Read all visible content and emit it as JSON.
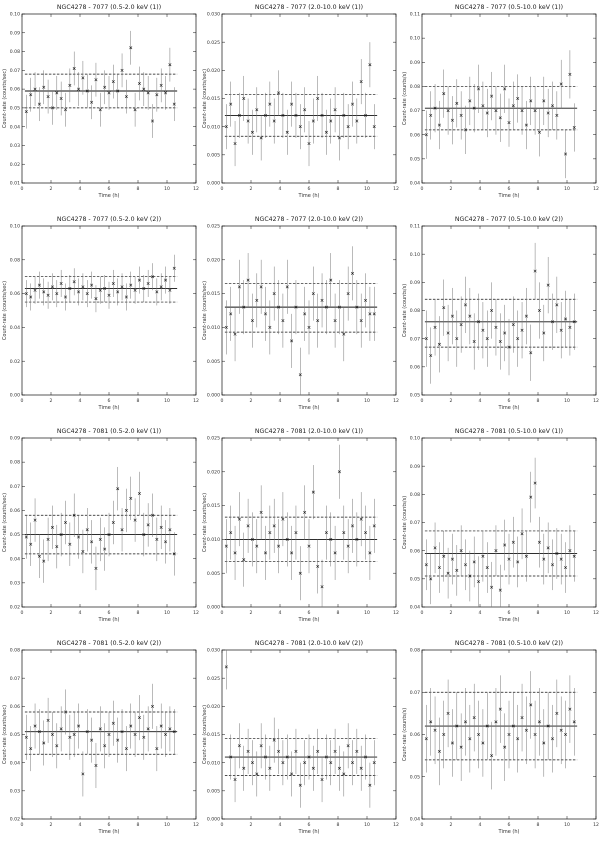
{
  "chart_data": [
    {
      "type": "scatter",
      "title": "NGC4278 - 7077 (0.5-2.0 keV (1))",
      "xlabel": "Time (h)",
      "ylabel": "Count-rate (counts/sec)",
      "xlim": [
        0,
        12
      ],
      "ylim": [
        0.01,
        0.1
      ],
      "xticks": [
        "0",
        "2",
        "4",
        "6",
        "8",
        "10",
        "12"
      ],
      "yticks": [
        "0.01",
        "0.02",
        "0.03",
        "0.04",
        "0.05",
        "0.06",
        "0.07",
        "0.08",
        "0.09",
        "0.10"
      ],
      "mean": 0.059,
      "band": [
        0.05,
        0.068
      ],
      "x": [
        0.3,
        0.6,
        0.9,
        1.2,
        1.5,
        1.8,
        2.1,
        2.4,
        2.7,
        3.0,
        3.3,
        3.6,
        3.9,
        4.2,
        4.5,
        4.8,
        5.1,
        5.4,
        5.7,
        6.0,
        6.3,
        6.6,
        6.9,
        7.2,
        7.5,
        7.8,
        8.1,
        8.4,
        8.7,
        9.0,
        9.3,
        9.6,
        9.9,
        10.2,
        10.5
      ],
      "y": [
        0.048,
        0.057,
        0.06,
        0.052,
        0.061,
        0.056,
        0.05,
        0.058,
        0.055,
        0.049,
        0.062,
        0.071,
        0.06,
        0.066,
        0.059,
        0.053,
        0.065,
        0.049,
        0.061,
        0.058,
        0.064,
        0.059,
        0.07,
        0.056,
        0.082,
        0.049,
        0.063,
        0.06,
        0.058,
        0.043,
        0.057,
        0.062,
        0.058,
        0.073,
        0.052
      ],
      "err": 0.009
    },
    {
      "type": "scatter",
      "title": "NGC4278 - 7077 (2.0-10.0 keV (1))",
      "xlabel": "Time (h)",
      "ylabel": "Count-rate (counts/sec)",
      "xlim": [
        0,
        12
      ],
      "ylim": [
        0,
        0.03
      ],
      "xticks": [
        "0",
        "2",
        "4",
        "6",
        "8",
        "10",
        "12"
      ],
      "yticks": [
        "0.000",
        "0.005",
        "0.010",
        "0.015",
        "0.020",
        "0.025",
        "0.030"
      ],
      "mean": 0.012,
      "band": [
        0.0083,
        0.0157
      ],
      "x": [
        0.3,
        0.6,
        0.9,
        1.2,
        1.5,
        1.8,
        2.1,
        2.4,
        2.7,
        3.0,
        3.3,
        3.6,
        3.9,
        4.2,
        4.5,
        4.8,
        5.1,
        5.4,
        5.7,
        6.0,
        6.3,
        6.6,
        6.9,
        7.2,
        7.5,
        7.8,
        8.1,
        8.4,
        8.7,
        9.0,
        9.3,
        9.6,
        9.9,
        10.2,
        10.5
      ],
      "y": [
        0.01,
        0.014,
        0.007,
        0.012,
        0.015,
        0.011,
        0.009,
        0.013,
        0.008,
        0.012,
        0.014,
        0.011,
        0.016,
        0.012,
        0.009,
        0.014,
        0.012,
        0.01,
        0.013,
        0.007,
        0.011,
        0.015,
        0.012,
        0.009,
        0.011,
        0.013,
        0.008,
        0.012,
        0.01,
        0.014,
        0.011,
        0.018,
        0.012,
        0.021,
        0.01
      ],
      "err": 0.004
    },
    {
      "type": "scatter",
      "title": "NGC4278 - 7077 (0.5-10.0 keV (1))",
      "xlabel": "Time (h)",
      "ylabel": "Count-rate (counts/s)",
      "xlim": [
        0,
        12
      ],
      "ylim": [
        0.04,
        0.11
      ],
      "xticks": [
        "0",
        "2",
        "4",
        "6",
        "8",
        "10",
        "12"
      ],
      "yticks": [
        "0.04",
        "0.05",
        "0.06",
        "0.07",
        "0.08",
        "0.09",
        "0.10",
        "0.11"
      ],
      "mean": 0.071,
      "band": [
        0.062,
        0.08
      ],
      "x": [
        0.3,
        0.6,
        0.9,
        1.2,
        1.5,
        1.8,
        2.1,
        2.4,
        2.7,
        3.0,
        3.3,
        3.6,
        3.9,
        4.2,
        4.5,
        4.8,
        5.1,
        5.4,
        5.7,
        6.0,
        6.3,
        6.6,
        6.9,
        7.2,
        7.5,
        7.8,
        8.1,
        8.4,
        8.7,
        9.0,
        9.3,
        9.6,
        9.9,
        10.2,
        10.5
      ],
      "y": [
        0.06,
        0.068,
        0.071,
        0.064,
        0.077,
        0.07,
        0.066,
        0.073,
        0.068,
        0.062,
        0.074,
        0.071,
        0.079,
        0.072,
        0.069,
        0.076,
        0.07,
        0.067,
        0.079,
        0.065,
        0.072,
        0.075,
        0.07,
        0.064,
        0.074,
        0.07,
        0.061,
        0.074,
        0.069,
        0.072,
        0.068,
        0.081,
        0.052,
        0.085,
        0.063
      ],
      "err": 0.01
    },
    {
      "type": "scatter",
      "title": "NGC4278 - 7077 (0.5-2.0 keV (2))",
      "xlabel": "Time (h)",
      "ylabel": "Count-rate (counts/sec)",
      "xlim": [
        0,
        12
      ],
      "ylim": [
        0,
        0.1
      ],
      "xticks": [
        "0",
        "2",
        "4",
        "6",
        "8",
        "10",
        "12"
      ],
      "yticks": [
        "0.00",
        "0.02",
        "0.04",
        "0.06",
        "0.08",
        "0.10"
      ],
      "mean": 0.063,
      "band": [
        0.055,
        0.07
      ],
      "x": [
        0.3,
        0.6,
        0.9,
        1.2,
        1.5,
        1.8,
        2.1,
        2.4,
        2.7,
        3.0,
        3.3,
        3.6,
        3.9,
        4.2,
        4.5,
        4.8,
        5.1,
        5.4,
        5.7,
        6.0,
        6.3,
        6.6,
        6.9,
        7.2,
        7.5,
        7.8,
        8.1,
        8.4,
        8.7,
        9.0,
        9.3,
        9.6,
        9.9,
        10.2,
        10.5
      ],
      "y": [
        0.06,
        0.058,
        0.062,
        0.065,
        0.061,
        0.059,
        0.064,
        0.06,
        0.066,
        0.058,
        0.063,
        0.067,
        0.061,
        0.064,
        0.06,
        0.065,
        0.057,
        0.062,
        0.063,
        0.059,
        0.066,
        0.061,
        0.064,
        0.058,
        0.065,
        0.062,
        0.068,
        0.063,
        0.066,
        0.07,
        0.061,
        0.064,
        0.068,
        0.062,
        0.075
      ],
      "err": 0.008
    },
    {
      "type": "scatter",
      "title": "NGC4278 - 7077 (2.0-10.0 keV (2))",
      "xlabel": "Time (h)",
      "ylabel": "Count-rate (counts/sec)",
      "xlim": [
        0,
        12
      ],
      "ylim": [
        0,
        0.025
      ],
      "xticks": [
        "0",
        "2",
        "4",
        "6",
        "8",
        "10",
        "12"
      ],
      "yticks": [
        "0.000",
        "0.005",
        "0.010",
        "0.015",
        "0.020",
        "0.025"
      ],
      "mean": 0.013,
      "band": [
        0.0093,
        0.0165
      ],
      "x": [
        0.3,
        0.6,
        0.9,
        1.2,
        1.5,
        1.8,
        2.1,
        2.4,
        2.7,
        3.0,
        3.3,
        3.6,
        3.9,
        4.2,
        4.5,
        4.8,
        5.1,
        5.4,
        5.7,
        6.0,
        6.3,
        6.6,
        6.9,
        7.2,
        7.5,
        7.8,
        8.1,
        8.4,
        8.7,
        9.0,
        9.3,
        9.6,
        9.9,
        10.2,
        10.5
      ],
      "y": [
        0.01,
        0.012,
        0.009,
        0.016,
        0.013,
        0.017,
        0.011,
        0.014,
        0.016,
        0.012,
        0.01,
        0.015,
        0.013,
        0.011,
        0.016,
        0.008,
        0.013,
        0.003,
        0.012,
        0.01,
        0.015,
        0.011,
        0.014,
        0.013,
        0.017,
        0.011,
        0.013,
        0.009,
        0.015,
        0.018,
        0.013,
        0.011,
        0.014,
        0.012,
        0.012
      ],
      "err": 0.004
    },
    {
      "type": "scatter",
      "title": "NGC4278 - 7077 (0.5-10.0 keV (2))",
      "xlabel": "Time (h)",
      "ylabel": "Count-rate (counts/s)",
      "xlim": [
        0,
        12
      ],
      "ylim": [
        0.05,
        0.11
      ],
      "xticks": [
        "0",
        "2",
        "4",
        "6",
        "8",
        "10",
        "12"
      ],
      "yticks": [
        "0.05",
        "0.06",
        "0.07",
        "0.08",
        "0.09",
        "0.10",
        "0.11"
      ],
      "mean": 0.076,
      "band": [
        0.067,
        0.084
      ],
      "x": [
        0.3,
        0.6,
        0.9,
        1.2,
        1.5,
        1.8,
        2.1,
        2.4,
        2.7,
        3.0,
        3.3,
        3.6,
        3.9,
        4.2,
        4.5,
        4.8,
        5.1,
        5.4,
        5.7,
        6.0,
        6.3,
        6.6,
        6.9,
        7.2,
        7.5,
        7.8,
        8.1,
        8.4,
        8.7,
        9.0,
        9.3,
        9.6,
        9.9,
        10.2,
        10.5
      ],
      "y": [
        0.07,
        0.064,
        0.074,
        0.068,
        0.081,
        0.072,
        0.078,
        0.07,
        0.075,
        0.082,
        0.078,
        0.069,
        0.076,
        0.073,
        0.07,
        0.08,
        0.074,
        0.069,
        0.072,
        0.067,
        0.075,
        0.07,
        0.073,
        0.078,
        0.065,
        0.094,
        0.08,
        0.072,
        0.089,
        0.076,
        0.082,
        0.073,
        0.077,
        0.074,
        0.076
      ],
      "err": 0.01
    },
    {
      "type": "scatter",
      "title": "NGC4278 - 7081 (0.5-2.0 keV (1))",
      "xlabel": "Time (h)",
      "ylabel": "Count-rate (counts/sec)",
      "xlim": [
        0,
        12
      ],
      "ylim": [
        0.02,
        0.09
      ],
      "xticks": [
        "0",
        "2",
        "4",
        "6",
        "8",
        "10",
        "12"
      ],
      "yticks": [
        "0.02",
        "0.03",
        "0.04",
        "0.05",
        "0.06",
        "0.07",
        "0.08",
        "0.09"
      ],
      "mean": 0.05,
      "band": [
        0.042,
        0.058
      ],
      "x": [
        0.3,
        0.6,
        0.9,
        1.2,
        1.5,
        1.8,
        2.1,
        2.4,
        2.7,
        3.0,
        3.3,
        3.6,
        3.9,
        4.2,
        4.5,
        4.8,
        5.1,
        5.4,
        5.7,
        6.0,
        6.3,
        6.6,
        6.9,
        7.2,
        7.5,
        7.8,
        8.1,
        8.4,
        8.7,
        9.0,
        9.3,
        9.6,
        9.9,
        10.2,
        10.5
      ],
      "y": [
        0.049,
        0.046,
        0.056,
        0.041,
        0.039,
        0.048,
        0.053,
        0.045,
        0.05,
        0.055,
        0.046,
        0.058,
        0.049,
        0.043,
        0.052,
        0.047,
        0.036,
        0.048,
        0.044,
        0.05,
        0.055,
        0.069,
        0.052,
        0.06,
        0.065,
        0.056,
        0.067,
        0.05,
        0.054,
        0.058,
        0.048,
        0.053,
        0.047,
        0.052,
        0.042
      ],
      "err": 0.009
    },
    {
      "type": "scatter",
      "title": "NGC4278 - 7081 (2.0-10.0 keV (1))",
      "xlabel": "Time (h)",
      "ylabel": "Count-rate (counts/sec)",
      "xlim": [
        0,
        12
      ],
      "ylim": [
        0,
        0.025
      ],
      "xticks": [
        "0",
        "2",
        "4",
        "6",
        "8",
        "10",
        "12"
      ],
      "yticks": [
        "0.000",
        "0.005",
        "0.010",
        "0.015",
        "0.020",
        "0.025"
      ],
      "mean": 0.01,
      "band": [
        0.0067,
        0.0133
      ],
      "x": [
        0.3,
        0.6,
        0.9,
        1.2,
        1.5,
        1.8,
        2.1,
        2.4,
        2.7,
        3.0,
        3.3,
        3.6,
        3.9,
        4.2,
        4.5,
        4.8,
        5.1,
        5.4,
        5.7,
        6.0,
        6.3,
        6.6,
        6.9,
        7.2,
        7.5,
        7.8,
        8.1,
        8.4,
        8.7,
        9.0,
        9.3,
        9.6,
        9.9,
        10.2,
        10.5
      ],
      "y": [
        0.009,
        0.011,
        0.008,
        0.013,
        0.007,
        0.012,
        0.01,
        0.009,
        0.014,
        0.008,
        0.011,
        0.012,
        0.009,
        0.013,
        0.01,
        0.008,
        0.011,
        0.005,
        0.014,
        0.009,
        0.017,
        0.006,
        0.003,
        0.011,
        0.01,
        0.008,
        0.02,
        0.011,
        0.009,
        0.012,
        0.01,
        0.013,
        0.011,
        0.008,
        0.012
      ],
      "err": 0.004
    },
    {
      "type": "scatter",
      "title": "NGC4278 - 7081 (0.5-10.0 keV (1))",
      "xlabel": "Time (h)",
      "ylabel": "Count-rate (counts/s)",
      "xlim": [
        0,
        12
      ],
      "ylim": [
        0.04,
        0.1
      ],
      "xticks": [
        "0",
        "2",
        "4",
        "6",
        "8",
        "10",
        "12"
      ],
      "yticks": [
        "0.04",
        "0.05",
        "0.06",
        "0.07",
        "0.08",
        "0.09",
        "0.10"
      ],
      "mean": 0.059,
      "band": [
        0.051,
        0.067
      ],
      "x": [
        0.3,
        0.6,
        0.9,
        1.2,
        1.5,
        1.8,
        2.1,
        2.4,
        2.7,
        3.0,
        3.3,
        3.6,
        3.9,
        4.2,
        4.5,
        4.8,
        5.1,
        5.4,
        5.7,
        6.0,
        6.3,
        6.6,
        6.9,
        7.2,
        7.5,
        7.8,
        8.1,
        8.4,
        8.7,
        9.0,
        9.3,
        9.6,
        9.9,
        10.2,
        10.5
      ],
      "y": [
        0.055,
        0.05,
        0.061,
        0.054,
        0.058,
        0.052,
        0.057,
        0.053,
        0.06,
        0.055,
        0.051,
        0.056,
        0.049,
        0.058,
        0.054,
        0.047,
        0.06,
        0.046,
        0.062,
        0.057,
        0.063,
        0.056,
        0.066,
        0.058,
        0.079,
        0.084,
        0.063,
        0.057,
        0.061,
        0.055,
        0.059,
        0.057,
        0.054,
        0.06,
        0.058
      ],
      "err": 0.009
    },
    {
      "type": "scatter",
      "title": "NGC4278 - 7081 (0.5-2.0 keV (2))",
      "xlabel": "Time (h)",
      "ylabel": "Count-rate (counts/sec)",
      "xlim": [
        0,
        12
      ],
      "ylim": [
        0.02,
        0.08
      ],
      "xticks": [
        "0",
        "2",
        "4",
        "6",
        "8",
        "10",
        "12"
      ],
      "yticks": [
        "0.02",
        "0.03",
        "0.04",
        "0.05",
        "0.06",
        "0.07",
        "0.08"
      ],
      "mean": 0.051,
      "band": [
        0.043,
        0.058
      ],
      "x": [
        0.3,
        0.6,
        0.9,
        1.2,
        1.5,
        1.8,
        2.1,
        2.4,
        2.7,
        3.0,
        3.3,
        3.6,
        3.9,
        4.2,
        4.5,
        4.8,
        5.1,
        5.4,
        5.7,
        6.0,
        6.3,
        6.6,
        6.9,
        7.2,
        7.5,
        7.8,
        8.1,
        8.4,
        8.7,
        9.0,
        9.3,
        9.6,
        9.9,
        10.2,
        10.5
      ],
      "y": [
        0.049,
        0.045,
        0.053,
        0.051,
        0.047,
        0.055,
        0.05,
        0.046,
        0.052,
        0.058,
        0.049,
        0.05,
        0.053,
        0.036,
        0.051,
        0.048,
        0.039,
        0.052,
        0.046,
        0.05,
        0.054,
        0.048,
        0.051,
        0.045,
        0.053,
        0.05,
        0.056,
        0.049,
        0.052,
        0.06,
        0.045,
        0.053,
        0.05,
        0.052,
        0.051
      ],
      "err": 0.008
    },
    {
      "type": "scatter",
      "title": "NGC4278 - 7081 (2.0-10.0 keV (2))",
      "xlabel": "Time (h)",
      "ylabel": "Count-rate (counts/sec)",
      "xlim": [
        0,
        12
      ],
      "ylim": [
        0,
        0.03
      ],
      "xticks": [
        "0",
        "2",
        "4",
        "6",
        "8",
        "10",
        "12"
      ],
      "yticks": [
        "0.000",
        "0.005",
        "0.010",
        "0.015",
        "0.020",
        "0.025",
        "0.030"
      ],
      "mean": 0.011,
      "band": [
        0.0077,
        0.0143
      ],
      "x": [
        0.3,
        0.6,
        0.9,
        1.2,
        1.5,
        1.8,
        2.1,
        2.4,
        2.7,
        3.0,
        3.3,
        3.6,
        3.9,
        4.2,
        4.5,
        4.8,
        5.1,
        5.4,
        5.7,
        6.0,
        6.3,
        6.6,
        6.9,
        7.2,
        7.5,
        7.8,
        8.1,
        8.4,
        8.7,
        9.0,
        9.3,
        9.6,
        9.9,
        10.2,
        10.5
      ],
      "y": [
        0.027,
        0.011,
        0.007,
        0.013,
        0.009,
        0.012,
        0.01,
        0.008,
        0.013,
        0.011,
        0.009,
        0.014,
        0.012,
        0.01,
        0.011,
        0.008,
        0.012,
        0.006,
        0.01,
        0.011,
        0.009,
        0.012,
        0.007,
        0.011,
        0.01,
        0.012,
        0.009,
        0.008,
        0.013,
        0.01,
        0.012,
        0.009,
        0.011,
        0.006,
        0.01
      ],
      "err": 0.004
    },
    {
      "type": "scatter",
      "title": "NGC4278 - 7081 (0.5-10.0 keV (2))",
      "xlabel": "Time (h)",
      "ylabel": "Count-rate (counts/s)",
      "xlim": [
        0,
        12
      ],
      "ylim": [
        0.04,
        0.08
      ],
      "xticks": [
        "0",
        "2",
        "4",
        "6",
        "8",
        "10",
        "12"
      ],
      "yticks": [
        "0.04",
        "0.05",
        "0.06",
        "0.07",
        "0.08"
      ],
      "mean": 0.062,
      "band": [
        0.054,
        0.07
      ],
      "x": [
        0.3,
        0.6,
        0.9,
        1.2,
        1.5,
        1.8,
        2.1,
        2.4,
        2.7,
        3.0,
        3.3,
        3.6,
        3.9,
        4.2,
        4.5,
        4.8,
        5.1,
        5.4,
        5.7,
        6.0,
        6.3,
        6.6,
        6.9,
        7.2,
        7.5,
        7.8,
        8.1,
        8.4,
        8.7,
        9.0,
        9.3,
        9.6,
        9.9,
        10.2,
        10.5
      ],
      "y": [
        0.059,
        0.063,
        0.061,
        0.056,
        0.06,
        0.065,
        0.058,
        0.062,
        0.057,
        0.063,
        0.059,
        0.064,
        0.06,
        0.058,
        0.062,
        0.055,
        0.063,
        0.066,
        0.057,
        0.06,
        0.062,
        0.059,
        0.064,
        0.061,
        0.067,
        0.06,
        0.063,
        0.058,
        0.062,
        0.059,
        0.065,
        0.061,
        0.06,
        0.066,
        0.063
      ],
      "err": 0.008
    }
  ]
}
